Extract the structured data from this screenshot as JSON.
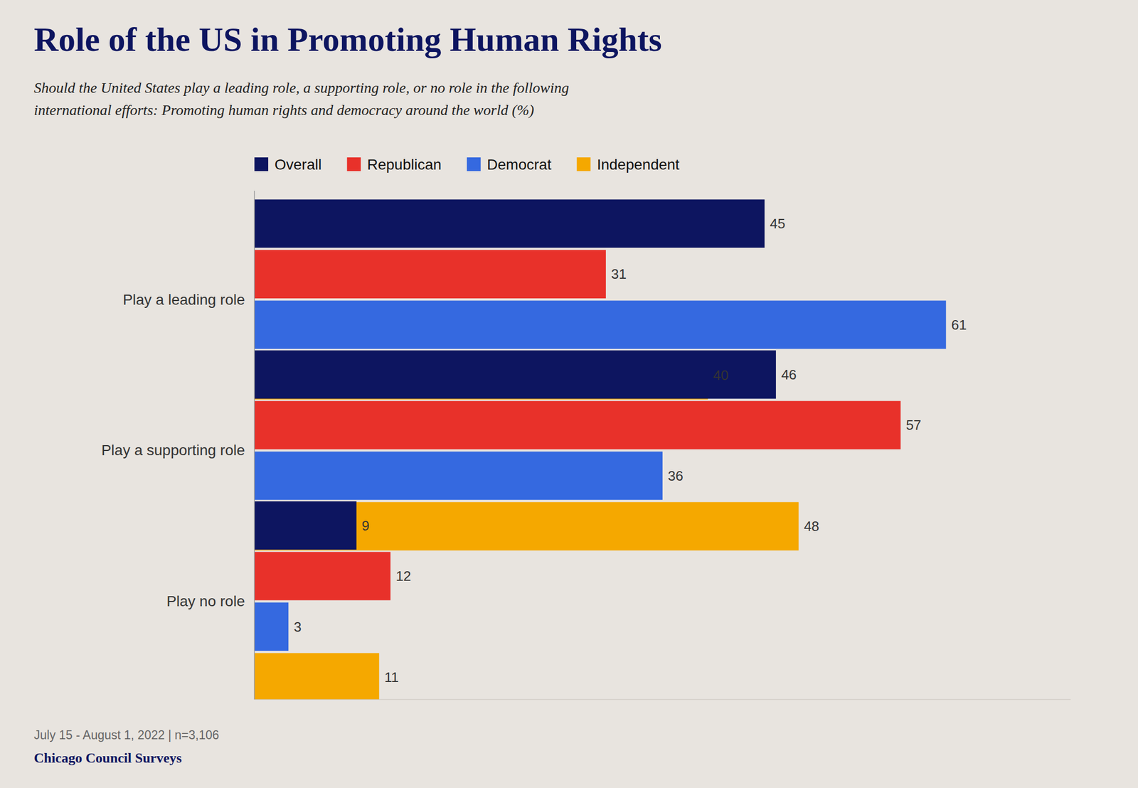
{
  "chart_data": {
    "type": "bar",
    "orientation": "horizontal",
    "title": "Role of the US in Promoting Human Rights",
    "subtitle": "Should the United States play a leading role, a supporting role, or no role in the following\ninternational efforts: Promoting human rights and democracy around the world (%)",
    "categories": [
      "Play a leading role",
      "Play a supporting role",
      "Play no role"
    ],
    "series": [
      {
        "name": "Overall",
        "color": "#0d1560",
        "values": [
          45,
          46,
          9
        ]
      },
      {
        "name": "Republican",
        "color": "#e8312a",
        "values": [
          31,
          57,
          12
        ]
      },
      {
        "name": "Democrat",
        "color": "#3569e0",
        "values": [
          61,
          36,
          3
        ]
      },
      {
        "name": "Independent",
        "color": "#f5a800",
        "values": [
          40,
          48,
          11
        ]
      }
    ],
    "xlim": [
      0,
      72
    ],
    "data_labels": true,
    "tick_labels": "y",
    "grid": false,
    "legend": "top",
    "annotations": [
      "July 15 - August 1, 2022 | n=3,106",
      "Chicago Council Surveys"
    ]
  }
}
